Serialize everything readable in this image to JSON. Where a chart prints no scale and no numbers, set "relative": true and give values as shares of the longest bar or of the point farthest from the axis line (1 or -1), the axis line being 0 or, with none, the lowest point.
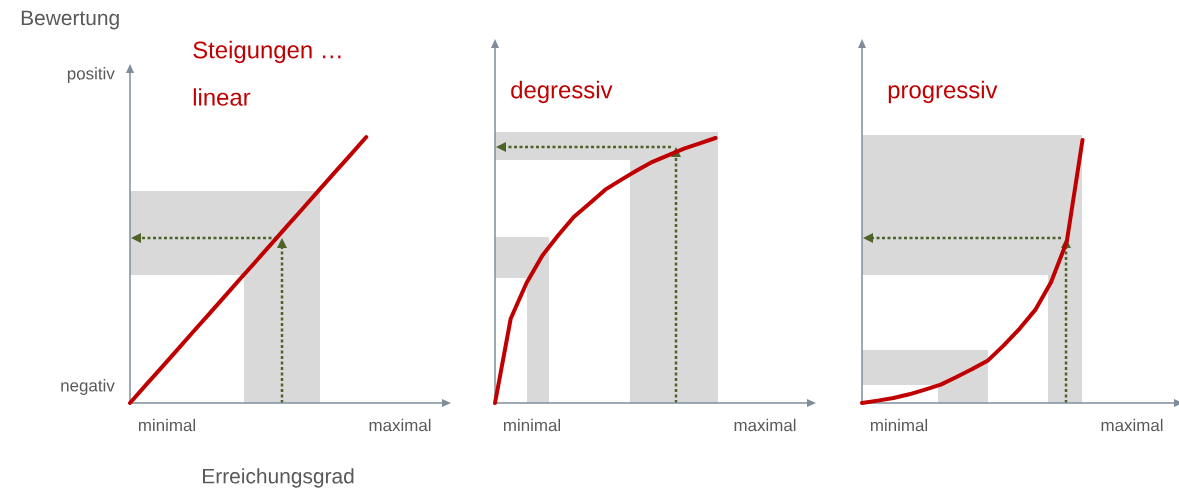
{
  "chart_data": [
    {
      "type": "line",
      "relative": true,
      "title": "Steigungen …",
      "subtitle": "linear",
      "xlabel": "Erreichungsgrad",
      "ylabel": "Bewertung",
      "annotations": [
        "minimal",
        "maximal",
        "negativ",
        "positiv"
      ],
      "categories": [
        null,
        null,
        null,
        null,
        null,
        null,
        null,
        null,
        null,
        null,
        null,
        null,
        null,
        null,
        null,
        null,
        null,
        null,
        null,
        null,
        null
      ],
      "series": [
        {
          "color": "#c00000",
          "values": [
            0,
            0.067,
            0.133,
            0.2,
            0.267,
            0.333,
            0.4,
            0.467,
            0.533,
            0.6,
            0.667,
            0.733,
            0.8,
            0.867,
            0.933,
            1,
            null,
            null,
            null,
            null,
            null
          ]
        }
      ]
    },
    {
      "type": "line",
      "relative": true,
      "title": "degressiv",
      "annotations": [
        "minimal",
        "maximal"
      ],
      "categories": [
        null,
        null,
        null,
        null,
        null,
        null,
        null,
        null,
        null,
        null,
        null,
        null,
        null,
        null,
        null,
        null,
        null,
        null,
        null,
        null,
        null
      ],
      "series": [
        {
          "color": "#c00000",
          "values": [
            0,
            0.319,
            0.453,
            0.556,
            0.632,
            0.702,
            0.753,
            0.805,
            0.842,
            0.877,
            0.91,
            0.935,
            0.96,
            0.98,
            1,
            null,
            null,
            null,
            null,
            null,
            null
          ]
        }
      ]
    },
    {
      "type": "line",
      "relative": true,
      "title": "progressiv",
      "annotations": [
        "minimal",
        "maximal"
      ],
      "categories": [
        null,
        null,
        null,
        null,
        null,
        null,
        null,
        null,
        null,
        null,
        null,
        null,
        null,
        null,
        null,
        null,
        null,
        null,
        null,
        null,
        null
      ],
      "series": [
        {
          "color": "#c00000",
          "values": [
            0,
            0.009,
            0.019,
            0.033,
            0.051,
            0.07,
            0.099,
            0.129,
            0.162,
            0.219,
            0.282,
            0.354,
            0.459,
            0.613,
            1,
            null,
            null,
            null,
            null,
            null,
            null
          ]
        }
      ]
    }
  ]
}
